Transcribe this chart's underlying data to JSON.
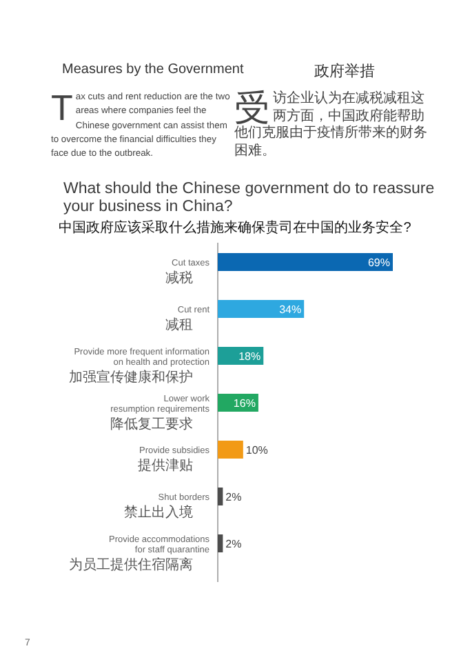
{
  "chart_data": {
    "type": "bar",
    "orientation": "horizontal",
    "title": "What should the Chinese government do to reassure your business in China?",
    "subtitle": "中国政府应该采取什么措施来确保贵司在中国的业务安全?",
    "categories": [
      "Cut taxes\n减税",
      "Cut rent\n减租",
      "Provide more frequent information\non health and protection\n加强宣传健康和保护",
      "Lower work\nresumption requirements\n降低复工要求",
      "Provide subsidies\n提供津贴",
      "Shut borders\n禁止出入境",
      "Provide accommodations\nfor staff quarantine\n为员工提供住宿隔离"
    ],
    "values": [
      69,
      34,
      18,
      16,
      10,
      2,
      2
    ],
    "colors": [
      "#0b68b2",
      "#2ea8e0",
      "#1d9f98",
      "#22a862",
      "#f29a16",
      "#4d4d4d",
      "#4d4d4d"
    ],
    "value_labels": [
      "69%",
      "34%",
      "18%",
      "16%",
      "10%",
      "2%",
      "2%"
    ],
    "annotations": [
      "Measures by the Government",
      "政府举措",
      "Tax cuts and rent reduction are the two areas where companies feel the Chinese government can assist them to overcome the financial difficulties they face due to the outbreak.",
      "受访企业认为在减税减租这两方面，中国政府能帮助他们克服由于疫情所带来的财务困难。",
      "7"
    ]
  }
}
